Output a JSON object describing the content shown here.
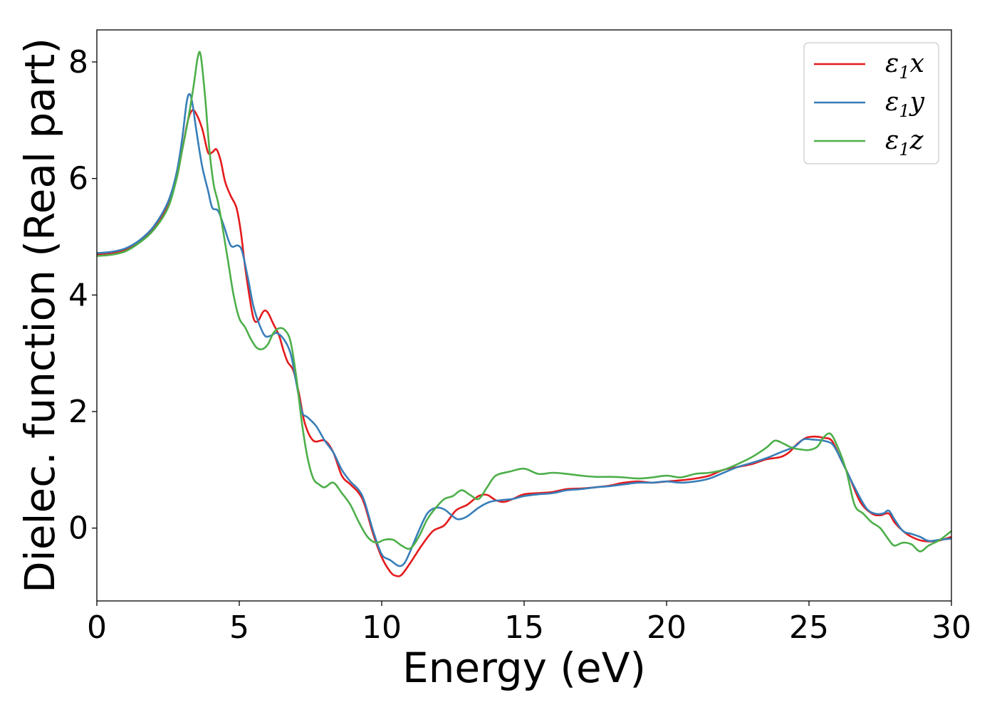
{
  "chart_data": {
    "type": "line",
    "xlabel": "Energy (eV)",
    "ylabel": "Dielec. function (Real part)",
    "xlim": [
      0,
      30
    ],
    "ylim": [
      -1.25,
      8.55
    ],
    "xticks": [
      0,
      5,
      10,
      15,
      20,
      25,
      30
    ],
    "yticks": [
      0,
      2,
      4,
      6,
      8
    ],
    "xtick_labels": [
      "0",
      "5",
      "10",
      "15",
      "20",
      "25",
      "30"
    ],
    "ytick_labels": [
      "0",
      "2",
      "4",
      "6",
      "8"
    ],
    "grid": false,
    "legend_position": "top-right",
    "series": [
      {
        "name": "ε1x",
        "legend": {
          "symbol": "ε",
          "sub": "1",
          "suffix": "x"
        },
        "color": "#e41a1c",
        "points": [
          [
            0,
            4.7
          ],
          [
            0.5,
            4.72
          ],
          [
            1,
            4.78
          ],
          [
            1.5,
            4.92
          ],
          [
            2,
            5.15
          ],
          [
            2.5,
            5.55
          ],
          [
            2.8,
            6.0
          ],
          [
            3.0,
            6.5
          ],
          [
            3.2,
            7.0
          ],
          [
            3.35,
            7.17
          ],
          [
            3.5,
            7.1
          ],
          [
            3.7,
            6.85
          ],
          [
            3.9,
            6.45
          ],
          [
            4.05,
            6.45
          ],
          [
            4.2,
            6.5
          ],
          [
            4.35,
            6.3
          ],
          [
            4.5,
            5.95
          ],
          [
            4.7,
            5.7
          ],
          [
            4.9,
            5.5
          ],
          [
            5.05,
            5.1
          ],
          [
            5.2,
            4.5
          ],
          [
            5.35,
            4.0
          ],
          [
            5.5,
            3.6
          ],
          [
            5.65,
            3.55
          ],
          [
            5.85,
            3.72
          ],
          [
            6.0,
            3.7
          ],
          [
            6.2,
            3.5
          ],
          [
            6.4,
            3.3
          ],
          [
            6.55,
            3.05
          ],
          [
            6.7,
            2.85
          ],
          [
            6.9,
            2.7
          ],
          [
            7.1,
            2.3
          ],
          [
            7.3,
            1.8
          ],
          [
            7.6,
            1.5
          ],
          [
            8.0,
            1.5
          ],
          [
            8.3,
            1.3
          ],
          [
            8.6,
            0.9
          ],
          [
            8.9,
            0.75
          ],
          [
            9.2,
            0.6
          ],
          [
            9.4,
            0.4
          ],
          [
            9.7,
            -0.1
          ],
          [
            10.0,
            -0.5
          ],
          [
            10.3,
            -0.75
          ],
          [
            10.5,
            -0.82
          ],
          [
            10.7,
            -0.8
          ],
          [
            11.0,
            -0.6
          ],
          [
            11.4,
            -0.3
          ],
          [
            11.8,
            -0.05
          ],
          [
            12.2,
            0.05
          ],
          [
            12.6,
            0.3
          ],
          [
            13.0,
            0.4
          ],
          [
            13.4,
            0.55
          ],
          [
            13.7,
            0.57
          ],
          [
            14.0,
            0.48
          ],
          [
            14.3,
            0.45
          ],
          [
            14.6,
            0.5
          ],
          [
            15.0,
            0.58
          ],
          [
            15.5,
            0.6
          ],
          [
            16.0,
            0.62
          ],
          [
            16.5,
            0.67
          ],
          [
            17.0,
            0.68
          ],
          [
            17.5,
            0.7
          ],
          [
            18.0,
            0.73
          ],
          [
            18.5,
            0.78
          ],
          [
            19.0,
            0.8
          ],
          [
            19.5,
            0.78
          ],
          [
            20.0,
            0.8
          ],
          [
            20.5,
            0.82
          ],
          [
            21.0,
            0.85
          ],
          [
            21.5,
            0.9
          ],
          [
            22.0,
            1.0
          ],
          [
            22.5,
            1.05
          ],
          [
            23.0,
            1.1
          ],
          [
            23.5,
            1.18
          ],
          [
            24.0,
            1.22
          ],
          [
            24.3,
            1.3
          ],
          [
            24.6,
            1.45
          ],
          [
            24.9,
            1.55
          ],
          [
            25.2,
            1.57
          ],
          [
            25.5,
            1.55
          ],
          [
            25.8,
            1.5
          ],
          [
            26.1,
            1.2
          ],
          [
            26.4,
            0.9
          ],
          [
            26.8,
            0.45
          ],
          [
            27.2,
            0.25
          ],
          [
            27.5,
            0.22
          ],
          [
            27.8,
            0.25
          ],
          [
            28.0,
            0.1
          ],
          [
            28.3,
            -0.05
          ],
          [
            28.6,
            -0.15
          ],
          [
            29.0,
            -0.22
          ],
          [
            29.5,
            -0.22
          ],
          [
            30.0,
            -0.15
          ]
        ]
      },
      {
        "name": "ε1y",
        "legend": {
          "symbol": "ε",
          "sub": "1",
          "suffix": "y"
        },
        "color": "#377eb8",
        "points": [
          [
            0,
            4.72
          ],
          [
            0.5,
            4.74
          ],
          [
            1,
            4.8
          ],
          [
            1.5,
            4.94
          ],
          [
            2,
            5.18
          ],
          [
            2.5,
            5.6
          ],
          [
            2.8,
            6.1
          ],
          [
            3.0,
            6.7
          ],
          [
            3.15,
            7.3
          ],
          [
            3.25,
            7.45
          ],
          [
            3.35,
            7.3
          ],
          [
            3.5,
            6.8
          ],
          [
            3.7,
            6.2
          ],
          [
            3.9,
            5.8
          ],
          [
            4.05,
            5.5
          ],
          [
            4.25,
            5.45
          ],
          [
            4.45,
            5.2
          ],
          [
            4.7,
            4.85
          ],
          [
            4.95,
            4.85
          ],
          [
            5.1,
            4.75
          ],
          [
            5.3,
            4.3
          ],
          [
            5.5,
            3.8
          ],
          [
            5.7,
            3.5
          ],
          [
            5.9,
            3.3
          ],
          [
            6.1,
            3.3
          ],
          [
            6.3,
            3.35
          ],
          [
            6.55,
            3.25
          ],
          [
            6.8,
            3.0
          ],
          [
            7.0,
            2.5
          ],
          [
            7.2,
            2.0
          ],
          [
            7.4,
            1.9
          ],
          [
            7.7,
            1.75
          ],
          [
            8.0,
            1.5
          ],
          [
            8.3,
            1.3
          ],
          [
            8.6,
            1.0
          ],
          [
            8.9,
            0.8
          ],
          [
            9.2,
            0.65
          ],
          [
            9.4,
            0.45
          ],
          [
            9.7,
            -0.05
          ],
          [
            10.0,
            -0.45
          ],
          [
            10.3,
            -0.55
          ],
          [
            10.6,
            -0.65
          ],
          [
            10.8,
            -0.6
          ],
          [
            11.0,
            -0.4
          ],
          [
            11.3,
            -0.05
          ],
          [
            11.6,
            0.25
          ],
          [
            11.9,
            0.35
          ],
          [
            12.2,
            0.32
          ],
          [
            12.5,
            0.2
          ],
          [
            12.7,
            0.15
          ],
          [
            13.0,
            0.2
          ],
          [
            13.4,
            0.35
          ],
          [
            13.8,
            0.45
          ],
          [
            14.2,
            0.48
          ],
          [
            14.6,
            0.5
          ],
          [
            15.0,
            0.55
          ],
          [
            15.5,
            0.58
          ],
          [
            16.0,
            0.6
          ],
          [
            16.5,
            0.65
          ],
          [
            17.0,
            0.67
          ],
          [
            17.5,
            0.7
          ],
          [
            18.0,
            0.72
          ],
          [
            18.5,
            0.75
          ],
          [
            19.0,
            0.78
          ],
          [
            19.5,
            0.78
          ],
          [
            20.0,
            0.8
          ],
          [
            20.5,
            0.78
          ],
          [
            21.0,
            0.8
          ],
          [
            21.5,
            0.85
          ],
          [
            22.0,
            0.95
          ],
          [
            22.5,
            1.05
          ],
          [
            23.0,
            1.12
          ],
          [
            23.5,
            1.2
          ],
          [
            24.0,
            1.3
          ],
          [
            24.5,
            1.4
          ],
          [
            24.8,
            1.52
          ],
          [
            25.1,
            1.52
          ],
          [
            25.5,
            1.5
          ],
          [
            25.8,
            1.45
          ],
          [
            26.0,
            1.3
          ],
          [
            26.3,
            1.0
          ],
          [
            26.6,
            0.7
          ],
          [
            27.0,
            0.35
          ],
          [
            27.3,
            0.25
          ],
          [
            27.6,
            0.25
          ],
          [
            27.8,
            0.3
          ],
          [
            28.0,
            0.15
          ],
          [
            28.3,
            -0.05
          ],
          [
            28.6,
            -0.1
          ],
          [
            28.9,
            -0.15
          ],
          [
            29.2,
            -0.22
          ],
          [
            29.6,
            -0.2
          ],
          [
            30.0,
            -0.18
          ]
        ]
      },
      {
        "name": "ε1z",
        "legend": {
          "symbol": "ε",
          "sub": "1",
          "suffix": "z"
        },
        "color": "#4daf4a",
        "points": [
          [
            0,
            4.67
          ],
          [
            0.5,
            4.69
          ],
          [
            1,
            4.75
          ],
          [
            1.5,
            4.9
          ],
          [
            2,
            5.12
          ],
          [
            2.5,
            5.5
          ],
          [
            2.8,
            6.0
          ],
          [
            3.0,
            6.5
          ],
          [
            3.2,
            7.0
          ],
          [
            3.4,
            7.6
          ],
          [
            3.55,
            8.1
          ],
          [
            3.65,
            8.1
          ],
          [
            3.8,
            7.4
          ],
          [
            3.95,
            6.5
          ],
          [
            4.1,
            5.9
          ],
          [
            4.25,
            5.6
          ],
          [
            4.4,
            5.2
          ],
          [
            4.6,
            4.6
          ],
          [
            4.8,
            4.0
          ],
          [
            5.0,
            3.6
          ],
          [
            5.2,
            3.45
          ],
          [
            5.4,
            3.25
          ],
          [
            5.6,
            3.1
          ],
          [
            5.8,
            3.07
          ],
          [
            6.0,
            3.15
          ],
          [
            6.2,
            3.35
          ],
          [
            6.4,
            3.43
          ],
          [
            6.6,
            3.4
          ],
          [
            6.8,
            3.2
          ],
          [
            7.0,
            2.6
          ],
          [
            7.2,
            1.8
          ],
          [
            7.4,
            1.2
          ],
          [
            7.6,
            0.85
          ],
          [
            7.8,
            0.75
          ],
          [
            8.0,
            0.7
          ],
          [
            8.3,
            0.78
          ],
          [
            8.6,
            0.6
          ],
          [
            8.9,
            0.4
          ],
          [
            9.2,
            0.1
          ],
          [
            9.5,
            -0.15
          ],
          [
            9.8,
            -0.25
          ],
          [
            10.1,
            -0.2
          ],
          [
            10.4,
            -0.2
          ],
          [
            10.7,
            -0.3
          ],
          [
            11.0,
            -0.35
          ],
          [
            11.3,
            -0.15
          ],
          [
            11.6,
            0.15
          ],
          [
            11.9,
            0.35
          ],
          [
            12.2,
            0.5
          ],
          [
            12.5,
            0.55
          ],
          [
            12.8,
            0.65
          ],
          [
            13.1,
            0.57
          ],
          [
            13.4,
            0.5
          ],
          [
            13.7,
            0.7
          ],
          [
            14.0,
            0.9
          ],
          [
            14.5,
            0.97
          ],
          [
            15.0,
            1.02
          ],
          [
            15.5,
            0.93
          ],
          [
            16.0,
            0.95
          ],
          [
            16.5,
            0.93
          ],
          [
            17.0,
            0.9
          ],
          [
            17.5,
            0.88
          ],
          [
            18.0,
            0.88
          ],
          [
            18.5,
            0.87
          ],
          [
            19.0,
            0.85
          ],
          [
            19.5,
            0.87
          ],
          [
            20.0,
            0.9
          ],
          [
            20.5,
            0.87
          ],
          [
            21.0,
            0.93
          ],
          [
            21.5,
            0.95
          ],
          [
            22.0,
            1.0
          ],
          [
            22.5,
            1.1
          ],
          [
            23.0,
            1.22
          ],
          [
            23.5,
            1.38
          ],
          [
            23.8,
            1.5
          ],
          [
            24.1,
            1.45
          ],
          [
            24.4,
            1.38
          ],
          [
            24.7,
            1.35
          ],
          [
            25.0,
            1.34
          ],
          [
            25.3,
            1.4
          ],
          [
            25.5,
            1.55
          ],
          [
            25.75,
            1.62
          ],
          [
            26.0,
            1.4
          ],
          [
            26.3,
            1.0
          ],
          [
            26.6,
            0.4
          ],
          [
            26.9,
            0.25
          ],
          [
            27.2,
            0.1
          ],
          [
            27.5,
            0.0
          ],
          [
            27.8,
            -0.2
          ],
          [
            28.0,
            -0.3
          ],
          [
            28.3,
            -0.25
          ],
          [
            28.6,
            -0.28
          ],
          [
            28.9,
            -0.4
          ],
          [
            29.2,
            -0.3
          ],
          [
            29.6,
            -0.2
          ],
          [
            30.0,
            -0.05
          ]
        ]
      }
    ]
  }
}
